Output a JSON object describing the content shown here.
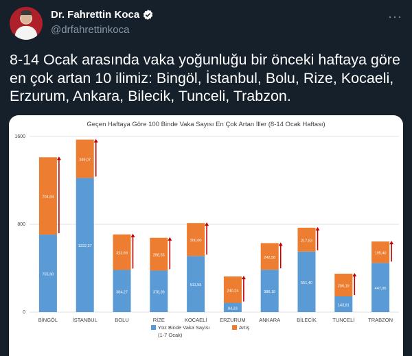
{
  "tweet": {
    "author_name": "Dr. Fahrettin Koca",
    "handle": "@drfahrettinkoca",
    "more_icon": "more-icon",
    "text": "8-14 Ocak arasında vaka yoğunluğu bir önceki haftaya göre en çok artan 10 ilimiz: Bingöl, İstanbul, Bolu, Rize, Kocaeli, Erzurum, Ankara, Bilecik, Tunceli, Trabzon.",
    "colors": {
      "background": "#15202b",
      "secondary_text": "#8b98a5",
      "verified": "#1d9bf0"
    }
  },
  "chart_data": {
    "type": "bar",
    "stacked": true,
    "title": "Geçen Haftaya Göre 100 Binde Vaka Sayısı En Çok Artan İller (8-14 Ocak Haftası)",
    "categories": [
      "BİNGÖL",
      "İSTANBUL",
      "BOLU",
      "RİZE",
      "KOCAELİ",
      "ERZURUM",
      "ANKARA",
      "BİLECİK",
      "TUNCELİ",
      "TRABZON"
    ],
    "series": [
      {
        "name": "Yüz Binde Vaka Sayısı (1-7 Ocak)",
        "color": "#5b9bd5",
        "values": [
          705.9,
          1222.37,
          384.27,
          378.39,
          511.55,
          84.33,
          386.15,
          551.4,
          143.81,
          447.95
        ],
        "labels": [
          "705,90",
          "1222,37",
          "384,27",
          "378,39",
          "511,55",
          "84,33",
          "386,15",
          "551,40",
          "143,81",
          "447,95"
        ]
      },
      {
        "name": "Artış",
        "color": "#ed7d31",
        "values": [
          704.84,
          349.07,
          323.69,
          298.55,
          300.0,
          240.24,
          242.58,
          217.63,
          206.15,
          195.4
        ],
        "labels": [
          "704,84",
          "349,07",
          "323,69",
          "298,55",
          "300,00",
          "240,24",
          "242,58",
          "217,63",
          "206,15",
          "195,40"
        ]
      }
    ],
    "yticks": [
      "0",
      "800",
      "1600"
    ],
    "ylim": [
      0,
      1600
    ],
    "grid": true,
    "legend_position": "bottom",
    "annotation": "red upward arrows beside each bar"
  }
}
